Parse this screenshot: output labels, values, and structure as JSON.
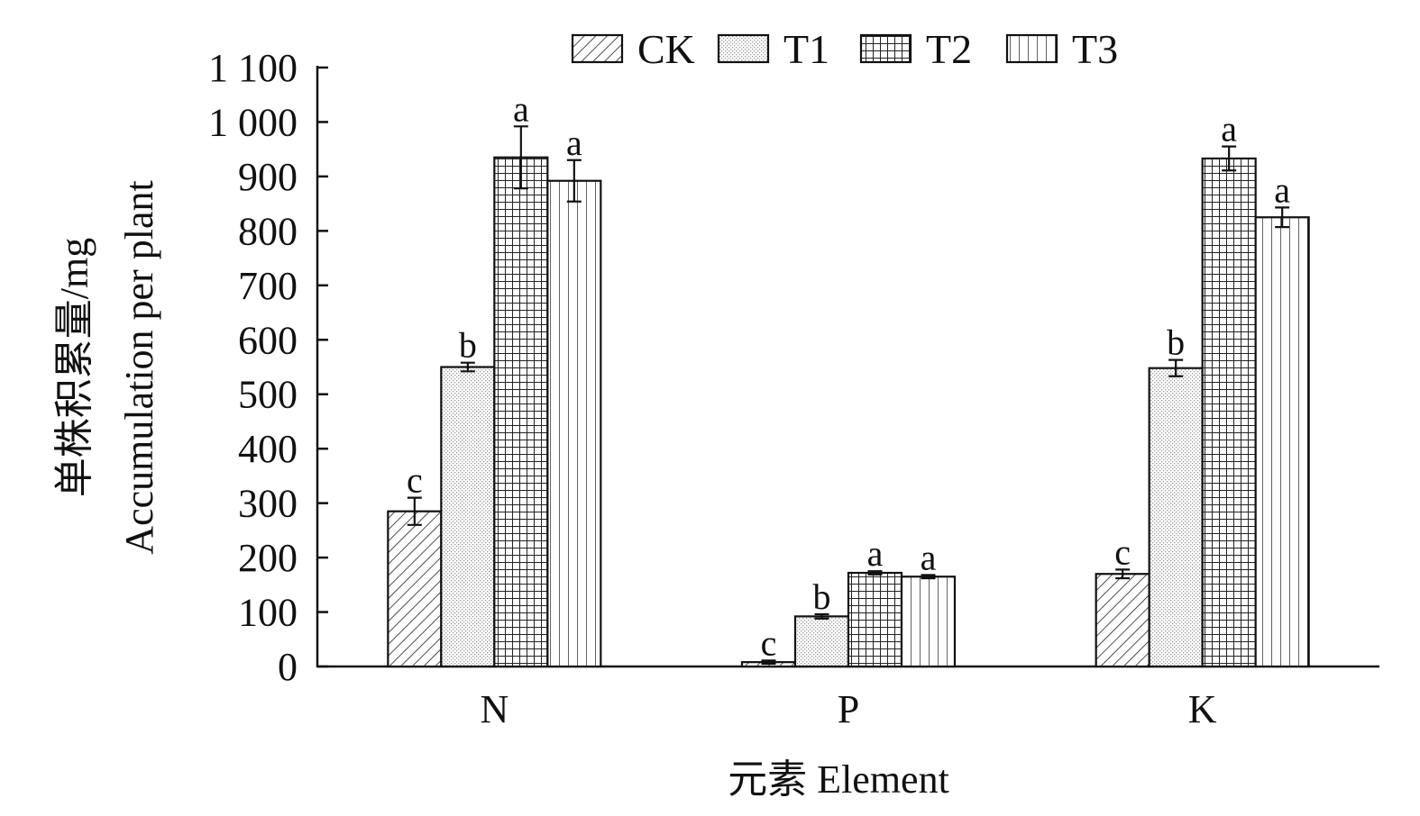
{
  "chart_data": {
    "type": "bar",
    "categories": [
      "N",
      "P",
      "K"
    ],
    "series": [
      {
        "name": "CK",
        "pattern": "diagonal",
        "values": [
          285,
          8,
          170
        ],
        "errors": [
          25,
          3,
          8
        ],
        "letters": [
          "c",
          "c",
          "c"
        ]
      },
      {
        "name": "T1",
        "pattern": "dotted",
        "values": [
          550,
          92,
          548
        ],
        "errors": [
          8,
          4,
          15
        ],
        "letters": [
          "b",
          "b",
          "b"
        ]
      },
      {
        "name": "T2",
        "pattern": "grid",
        "values": [
          935,
          172,
          933
        ],
        "errors": [
          57,
          3,
          22
        ],
        "letters": [
          "a",
          "a",
          "a"
        ]
      },
      {
        "name": "T3",
        "pattern": "vertical",
        "values": [
          892,
          165,
          825
        ],
        "errors": [
          38,
          3,
          18
        ],
        "letters": [
          "a",
          "a",
          "a"
        ]
      }
    ],
    "ylim": [
      0,
      1100
    ],
    "yticks": [
      {
        "value": 0,
        "label": "0"
      },
      {
        "value": 100,
        "label": "100"
      },
      {
        "value": 200,
        "label": "200"
      },
      {
        "value": 300,
        "label": "300"
      },
      {
        "value": 400,
        "label": "400"
      },
      {
        "value": 500,
        "label": "500"
      },
      {
        "value": 600,
        "label": "600"
      },
      {
        "value": 700,
        "label": "700"
      },
      {
        "value": 800,
        "label": "800"
      },
      {
        "value": 900,
        "label": "900"
      },
      {
        "value": 1000,
        "label": "1 000"
      },
      {
        "value": 1100,
        "label": "1 100"
      }
    ],
    "ylabel_cn": "单株积累量/mg",
    "ylabel_en": "Accumulation per plant",
    "xlabel": "元素 Element",
    "legend_position": "top",
    "grid": false
  }
}
